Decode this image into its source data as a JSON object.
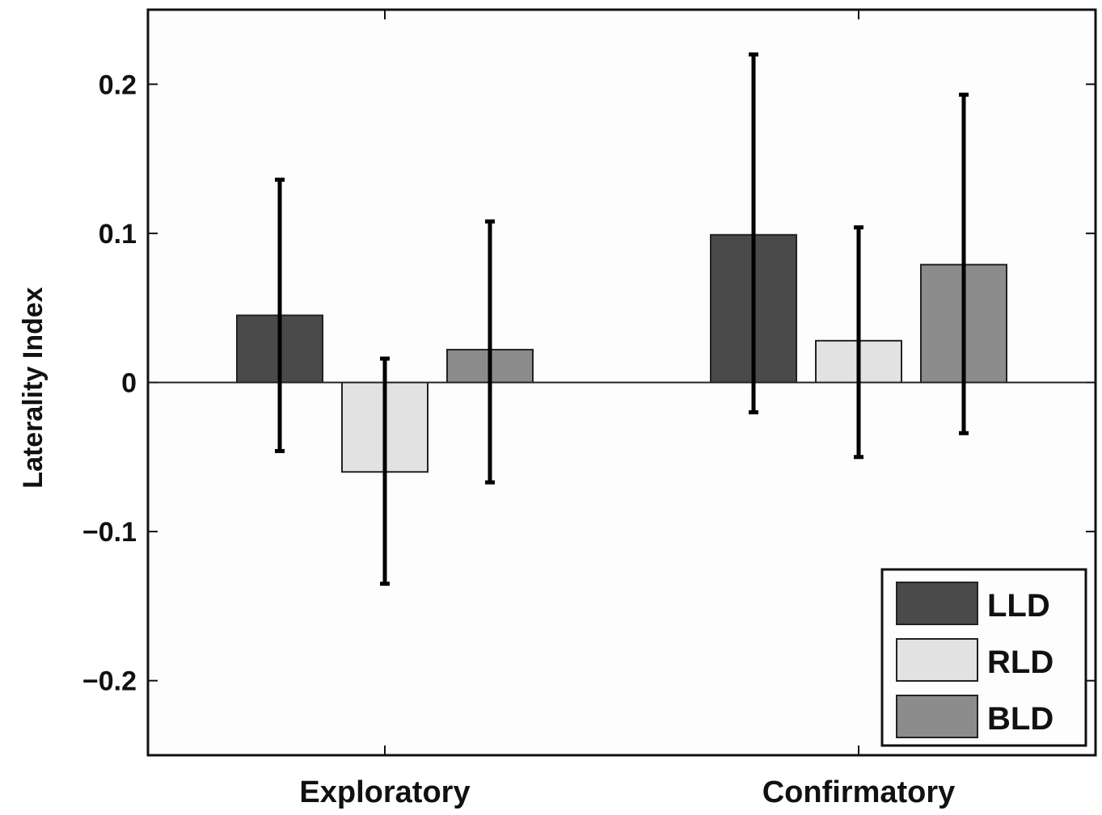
{
  "chart_data": {
    "type": "bar",
    "title": "",
    "xlabel": "",
    "ylabel": "Laterality Index",
    "categories": [
      "Exploratory",
      "Confirmatory"
    ],
    "series": [
      {
        "name": "LLD",
        "values": [
          0.045,
          0.099
        ],
        "err_low": [
          -0.046,
          -0.02
        ],
        "err_high": [
          0.136,
          0.22
        ],
        "color": "#4a4a4a"
      },
      {
        "name": "RLD",
        "values": [
          -0.06,
          0.028
        ],
        "err_low": [
          -0.135,
          -0.05
        ],
        "err_high": [
          0.016,
          0.104
        ],
        "color": "#e2e2e2"
      },
      {
        "name": "BLD",
        "values": [
          0.022,
          0.079
        ],
        "err_low": [
          -0.067,
          -0.034
        ],
        "err_high": [
          0.108,
          0.193
        ],
        "color": "#8c8c8c"
      }
    ],
    "ylim": [
      -0.25,
      0.25
    ],
    "yticks": [
      -0.2,
      -0.1,
      0,
      0.1,
      0.2
    ],
    "ytick_labels": [
      "−0.2",
      "−0.1",
      "0",
      "0.1",
      "0.2"
    ],
    "grid": false,
    "legend_position": "bottom-right",
    "zero_line": true
  }
}
